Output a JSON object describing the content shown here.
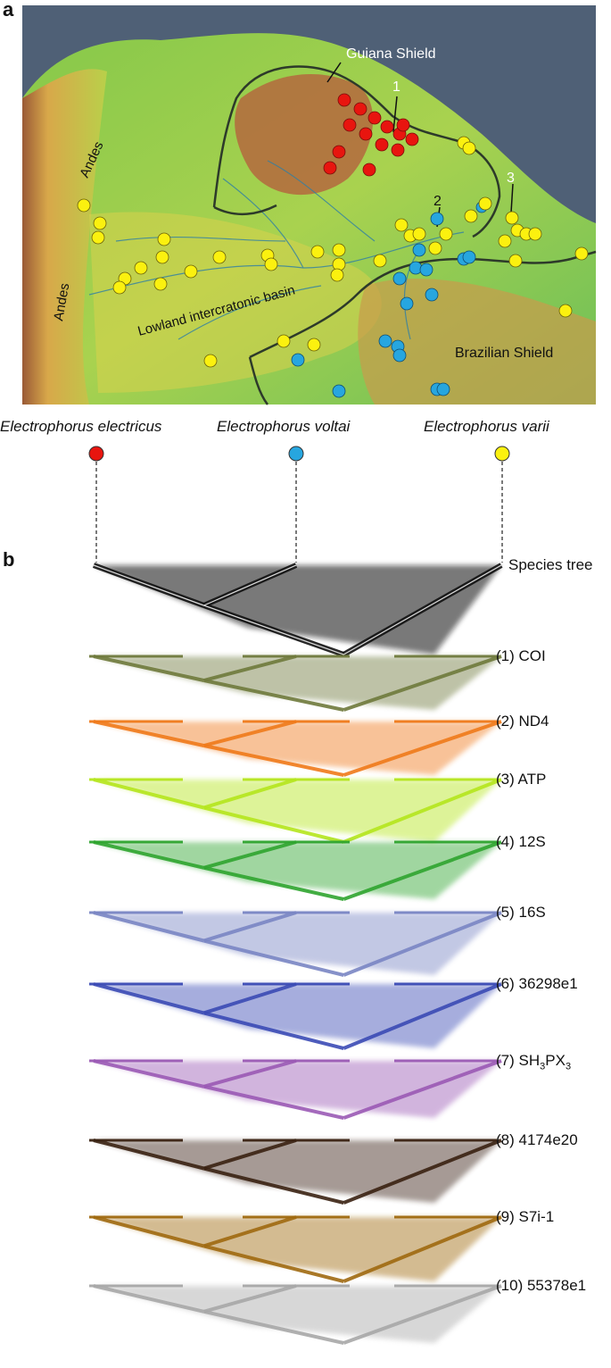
{
  "panel_a": "a",
  "panel_b": "b",
  "map": {
    "labels": {
      "guiana_shield": "Guiana Shield",
      "andes_top": "Andes",
      "andes_left": "Andes",
      "lowland": "Lowland intercratonic basin",
      "brazilian_shield": "Brazilian Shield"
    },
    "callouts": [
      "1",
      "2",
      "3"
    ],
    "colors": {
      "ocean": "#4f6076",
      "electricus": "#e8150f",
      "voltai": "#27a6df",
      "varii": "#fbf10f"
    }
  },
  "species": {
    "electricus": {
      "name": "Electrophorus electricus",
      "color": "#e8150f"
    },
    "voltai": {
      "name": "Electrophorus voltai",
      "color": "#27a6df"
    },
    "varii": {
      "name": "Electrophorus varii",
      "color": "#fbf10f"
    }
  },
  "trees": [
    {
      "label": "Species tree",
      "color": "#111111"
    },
    {
      "label": "(1) COI",
      "color": "#6f7a3c"
    },
    {
      "label": "(2) ND4",
      "color": "#f07a1a"
    },
    {
      "label": "(3) ATP",
      "color": "#b5e61d"
    },
    {
      "label": "(4) 12S",
      "color": "#2fa52f"
    },
    {
      "label": "(5) 16S",
      "color": "#7a86c4"
    },
    {
      "label": "(6) 36298e1",
      "color": "#3b4bb5"
    },
    {
      "label_prefix": "(7) SH",
      "sub1": "3",
      "label_mid": "PX",
      "sub2": "3",
      "color": "#9b5ab5"
    },
    {
      "label": "(8) 4174e20",
      "color": "#3a2212"
    },
    {
      "label": "(9) S7i-1",
      "color": "#a06a10"
    },
    {
      "label": "(10) 55378e1",
      "color": "#a8a8a8"
    }
  ]
}
